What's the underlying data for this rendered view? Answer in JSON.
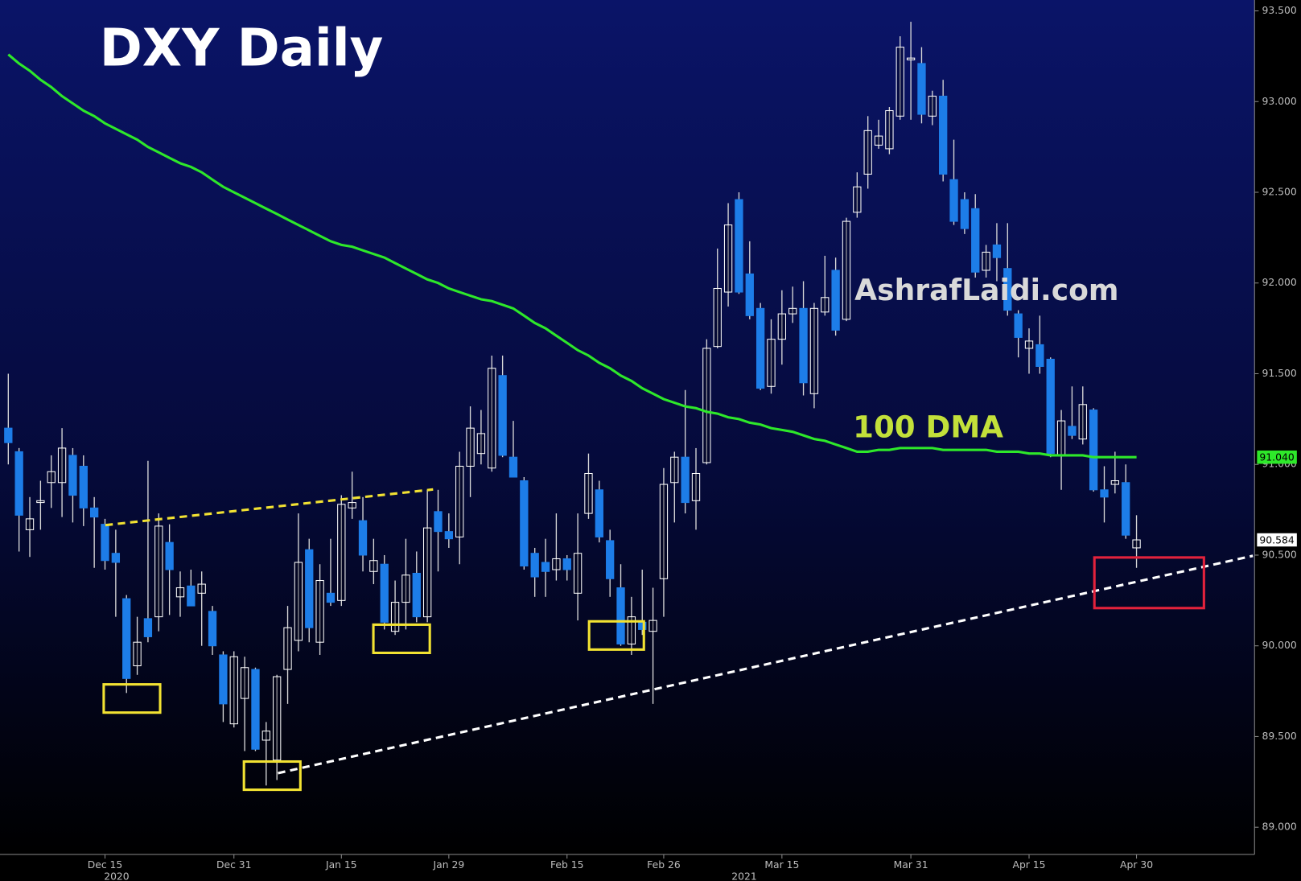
{
  "chart_data": {
    "type": "candlestick",
    "title": "DXY Daily",
    "watermark": "AshrafLaidi.com",
    "categories": [
      null,
      null,
      null,
      null,
      null,
      null,
      null,
      null,
      null,
      "Dec 15",
      null,
      null,
      null,
      null,
      null,
      null,
      null,
      null,
      null,
      null,
      null,
      "Dec 31",
      null,
      null,
      null,
      null,
      null,
      null,
      null,
      null,
      null,
      "Jan 15",
      null,
      null,
      null,
      null,
      null,
      null,
      null,
      null,
      null,
      "Jan 29",
      null,
      null,
      null,
      null,
      null,
      null,
      null,
      null,
      null,
      null,
      "Feb 15",
      null,
      null,
      null,
      null,
      null,
      null,
      null,
      null,
      "Feb 26",
      null,
      null,
      null,
      null,
      null,
      null,
      null,
      null,
      null,
      null,
      "Mar 15",
      null,
      null,
      null,
      null,
      null,
      null,
      null,
      null,
      null,
      null,
      null,
      "Mar 31",
      null,
      null,
      null,
      null,
      null,
      null,
      null,
      null,
      null,
      null,
      "Apr 15",
      null,
      null,
      null,
      null,
      null,
      null,
      null,
      null,
      null,
      "Apr 30"
    ],
    "year_labels": [
      "2020",
      "2021"
    ],
    "open": [
      91.2,
      91.07,
      90.64,
      90.79,
      90.9,
      90.9,
      91.05,
      90.99,
      90.76,
      90.67,
      90.51,
      90.26,
      89.89,
      90.15,
      90.16,
      90.57,
      90.27,
      90.33,
      90.29,
      90.19,
      89.95,
      89.57,
      89.71,
      89.87,
      89.48,
      89.37,
      89.87,
      90.03,
      90.53,
      90.02,
      90.29,
      90.25,
      90.76,
      90.69,
      90.41,
      90.45,
      90.08,
      90.24,
      90.4,
      90.16,
      90.74,
      90.63,
      90.6,
      90.99,
      91.06,
      90.98,
      91.49,
      91.04,
      90.91,
      90.51,
      90.46,
      90.42,
      90.48,
      90.29,
      90.73,
      90.86,
      90.58,
      90.32,
      90.01,
      90.13,
      90.08,
      90.37,
      90.9,
      91.04,
      90.8,
      91.01,
      91.65,
      91.95,
      92.46,
      92.05,
      91.86,
      91.43,
      91.69,
      91.83,
      91.86,
      91.39,
      91.84,
      92.07,
      91.8,
      92.39,
      92.6,
      92.76,
      92.74,
      92.92,
      93.23,
      93.21,
      92.92,
      93.03,
      92.57,
      92.46,
      92.41,
      92.07,
      92.21,
      92.08,
      91.83,
      91.64,
      91.66,
      91.58,
      91.05,
      91.21,
      91.14,
      91.3,
      90.86,
      90.89,
      90.9,
      90.54
    ],
    "high": [
      91.5,
      91.09,
      90.82,
      90.91,
      91.05,
      91.2,
      91.09,
      91.05,
      90.82,
      90.7,
      90.64,
      90.28,
      90.16,
      91.02,
      90.73,
      90.67,
      90.41,
      90.42,
      90.41,
      90.22,
      89.97,
      89.97,
      89.94,
      89.88,
      89.58,
      89.84,
      90.22,
      90.73,
      90.59,
      90.45,
      90.59,
      90.83,
      90.96,
      90.82,
      90.59,
      90.5,
      90.36,
      90.59,
      90.52,
      90.86,
      90.86,
      90.73,
      91.07,
      91.32,
      91.3,
      91.6,
      91.6,
      91.24,
      90.93,
      90.54,
      90.59,
      90.73,
      90.5,
      90.73,
      91.06,
      90.91,
      90.64,
      90.45,
      90.27,
      90.42,
      90.32,
      90.98,
      91.07,
      91.41,
      91.09,
      91.69,
      92.19,
      92.44,
      92.5,
      92.23,
      91.89,
      91.8,
      91.96,
      91.98,
      92.01,
      91.89,
      92.15,
      92.14,
      92.36,
      92.61,
      92.92,
      92.9,
      92.97,
      93.36,
      93.44,
      93.3,
      93.06,
      93.12,
      92.79,
      92.5,
      92.49,
      92.21,
      92.33,
      92.33,
      91.85,
      91.75,
      91.82,
      91.59,
      91.3,
      91.43,
      91.43,
      91.31,
      90.99,
      91.07,
      91.0,
      90.72
    ],
    "low": [
      91.0,
      90.52,
      90.49,
      90.64,
      90.76,
      90.71,
      90.68,
      90.66,
      90.43,
      90.42,
      90.16,
      89.74,
      89.84,
      90.02,
      90.08,
      90.17,
      90.16,
      90.22,
      90.0,
      89.95,
      89.58,
      89.55,
      89.42,
      89.42,
      89.23,
      89.26,
      89.68,
      89.97,
      90.02,
      89.95,
      90.22,
      90.22,
      90.7,
      90.41,
      90.34,
      90.09,
      90.06,
      90.09,
      90.13,
      90.13,
      90.41,
      90.54,
      90.45,
      90.82,
      91.0,
      90.96,
      91.04,
      90.93,
      90.42,
      90.27,
      90.27,
      90.36,
      90.36,
      90.14,
      90.7,
      90.57,
      90.27,
      90.0,
      89.95,
      90.06,
      89.68,
      90.16,
      90.68,
      90.73,
      90.64,
      91.0,
      91.64,
      91.87,
      91.94,
      91.8,
      91.41,
      91.39,
      91.55,
      91.78,
      91.38,
      91.31,
      91.82,
      91.71,
      91.79,
      92.36,
      92.52,
      92.74,
      92.71,
      92.9,
      92.9,
      92.88,
      92.87,
      92.56,
      92.32,
      92.27,
      92.03,
      92.03,
      92.01,
      91.82,
      91.59,
      91.5,
      91.5,
      91.04,
      90.86,
      91.14,
      91.11,
      90.85,
      90.68,
      90.84,
      90.59,
      90.43
    ],
    "close": [
      91.12,
      90.72,
      90.7,
      90.8,
      90.96,
      91.09,
      90.83,
      90.76,
      90.71,
      90.47,
      90.46,
      89.82,
      90.02,
      90.05,
      90.66,
      90.42,
      90.32,
      90.22,
      90.34,
      90.0,
      89.68,
      89.94,
      89.88,
      89.43,
      89.53,
      89.83,
      90.1,
      90.46,
      90.1,
      90.36,
      90.24,
      90.78,
      90.79,
      90.5,
      90.47,
      90.13,
      90.24,
      90.39,
      90.16,
      90.65,
      90.63,
      90.59,
      90.99,
      91.2,
      91.17,
      91.53,
      91.05,
      90.93,
      90.44,
      90.38,
      90.41,
      90.48,
      90.42,
      90.51,
      90.95,
      90.6,
      90.37,
      90.01,
      90.16,
      90.09,
      90.14,
      90.89,
      91.04,
      90.79,
      90.95,
      91.64,
      91.97,
      92.32,
      91.95,
      91.82,
      91.42,
      91.69,
      91.83,
      91.86,
      91.45,
      91.86,
      91.92,
      91.74,
      92.34,
      92.53,
      92.84,
      92.81,
      92.95,
      93.3,
      93.24,
      92.93,
      93.03,
      92.6,
      92.34,
      92.3,
      92.06,
      92.17,
      92.14,
      91.85,
      91.7,
      91.68,
      91.54,
      91.06,
      91.24,
      91.16,
      91.33,
      90.86,
      90.82,
      90.91,
      90.61,
      90.584
    ],
    "up_color": "#ffffff",
    "down_color": "#1d7de8",
    "ma": {
      "name": "100 DMA",
      "color": "#2ee82a",
      "label_color": "#c3e03a",
      "values": [
        93.26,
        93.21,
        93.17,
        93.12,
        93.08,
        93.03,
        92.99,
        92.95,
        92.92,
        92.88,
        92.85,
        92.82,
        92.79,
        92.75,
        92.72,
        92.69,
        92.66,
        92.64,
        92.61,
        92.57,
        92.53,
        92.5,
        92.47,
        92.44,
        92.41,
        92.38,
        92.35,
        92.32,
        92.29,
        92.26,
        92.23,
        92.21,
        92.2,
        92.18,
        92.16,
        92.14,
        92.11,
        92.08,
        92.05,
        92.02,
        92.0,
        91.97,
        91.95,
        91.93,
        91.91,
        91.9,
        91.88,
        91.86,
        91.82,
        91.78,
        91.75,
        91.71,
        91.67,
        91.63,
        91.6,
        91.56,
        91.53,
        91.49,
        91.46,
        91.42,
        91.39,
        91.36,
        91.34,
        91.32,
        91.31,
        91.29,
        91.28,
        91.26,
        91.25,
        91.23,
        91.22,
        91.2,
        91.19,
        91.18,
        91.16,
        91.14,
        91.13,
        91.11,
        91.09,
        91.07,
        91.07,
        91.08,
        91.08,
        91.09,
        91.09,
        91.09,
        91.09,
        91.08,
        91.08,
        91.08,
        91.08,
        91.08,
        91.07,
        91.07,
        91.07,
        91.06,
        91.06,
        91.05,
        91.05,
        91.05,
        91.05,
        91.04,
        91.04,
        91.04,
        91.04,
        91.04
      ]
    },
    "markers": [
      {
        "value": 91.04,
        "label": "91.040",
        "color": "#2ee82a"
      },
      {
        "value": 90.584,
        "label": "90.584",
        "color": "#ffffff"
      }
    ],
    "ylim": [
      88.85,
      93.56
    ],
    "yticks": [
      {
        "value": 89.0,
        "label": "89.000"
      },
      {
        "value": 89.5,
        "label": "89.500"
      },
      {
        "value": 90.0,
        "label": "90.000"
      },
      {
        "value": 90.5,
        "label": "90.500"
      },
      {
        "value": 91.0,
        "label": "91.000"
      },
      {
        "value": 91.5,
        "label": "91.500"
      },
      {
        "value": 92.0,
        "label": "92.000"
      },
      {
        "value": 92.5,
        "label": "92.500"
      },
      {
        "value": 93.0,
        "label": "93.000"
      },
      {
        "value": 93.5,
        "label": "93.500"
      }
    ],
    "grid": false
  }
}
